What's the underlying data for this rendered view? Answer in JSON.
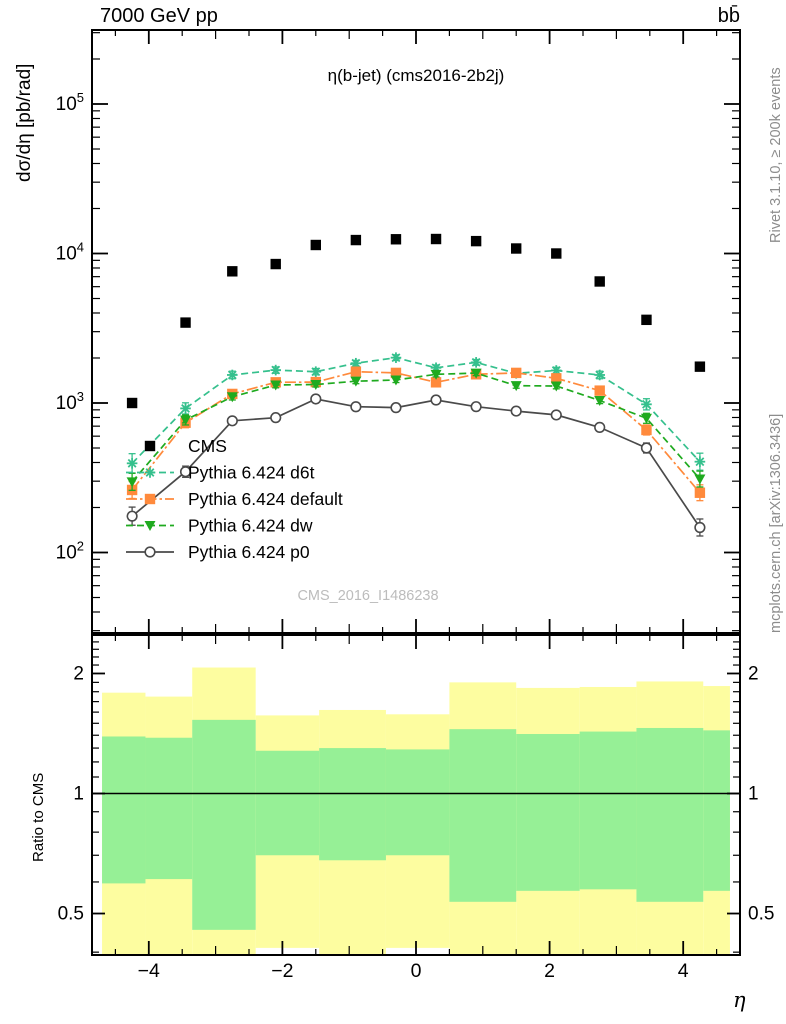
{
  "header": {
    "left_title": "7000 GeV pp",
    "right_title": "bb̄"
  },
  "plot": {
    "title": "η(b-jet) (cms2016-2b2j)",
    "watermark": "CMS_2016_I1486238",
    "ylabel": "dσ/dη [pb/rad]",
    "xlabel": "η",
    "ratio_ylabel": "Ratio to CMS",
    "side_text_top": "Rivet 3.1.10, ≥ 200k events",
    "side_text_bottom": "mcplots.cern.ch [arXiv:1306.3436]"
  },
  "colors": {
    "cms": "#000000",
    "d6t": "#35c08d",
    "default": "#ff8a3c",
    "dw": "#1faa1f",
    "p0": "#4a4a4a",
    "band_yellow": "#fdfda0",
    "band_green": "#96f096",
    "watermark_gray": "#bcbcbc",
    "side_gray": "#8c8c8c"
  },
  "chart_data": {
    "type": "line",
    "title": "η(b-jet) (cms2016-2b2j)",
    "xlabel": "η",
    "ylabel": "dσ/dη [pb/rad]",
    "y_scale": "log",
    "x_range": [
      -4.85,
      4.85
    ],
    "y_range": [
      29,
      310000
    ],
    "x_ticks_major": [
      -4,
      -2,
      0,
      2,
      4
    ],
    "y_tick_decades": [
      2,
      3,
      4,
      5
    ],
    "x": [
      -4.25,
      -3.45,
      -2.75,
      -2.1,
      -1.5,
      -0.9,
      -0.3,
      0.3,
      0.9,
      1.5,
      2.1,
      2.75,
      3.45,
      4.25
    ],
    "series": [
      {
        "name": "CMS",
        "color_ref": "cms",
        "marker": "square-filled",
        "line": "none",
        "values": [
          1000,
          3450,
          7600,
          8500,
          11400,
          12300,
          12450,
          12500,
          12100,
          10800,
          10000,
          6500,
          3600,
          1750
        ],
        "err_frac": [
          0.04,
          0.03,
          0.03,
          0.03,
          0.03,
          0.03,
          0.03,
          0.03,
          0.03,
          0.03,
          0.03,
          0.03,
          0.03,
          0.04
        ]
      },
      {
        "name": "Pythia 6.424 d6t",
        "color_ref": "d6t",
        "marker": "asterisk",
        "line": "dashed",
        "values": [
          395,
          920,
          1540,
          1660,
          1620,
          1845,
          2010,
          1720,
          1870,
          1580,
          1650,
          1540,
          980,
          405
        ],
        "err_frac": [
          0.16,
          0.09,
          0.06,
          0.05,
          0.05,
          0.045,
          0.045,
          0.045,
          0.045,
          0.05,
          0.05,
          0.06,
          0.09,
          0.14
        ]
      },
      {
        "name": "Pythia 6.424 default",
        "color_ref": "default",
        "marker": "square-filled",
        "line": "dashdot",
        "values": [
          262,
          738,
          1150,
          1375,
          1380,
          1620,
          1590,
          1375,
          1556,
          1590,
          1462,
          1210,
          660,
          251
        ],
        "err_frac": [
          0.14,
          0.08,
          0.05,
          0.045,
          0.04,
          0.04,
          0.04,
          0.04,
          0.04,
          0.04,
          0.045,
          0.05,
          0.08,
          0.13
        ]
      },
      {
        "name": "Pythia 6.424 dw",
        "color_ref": "dw",
        "marker": "triangle-down",
        "line": "dashed",
        "values": [
          297,
          770,
          1100,
          1320,
          1330,
          1400,
          1425,
          1555,
          1585,
          1306,
          1300,
          1040,
          790,
          310
        ],
        "err_frac": [
          0.14,
          0.08,
          0.05,
          0.045,
          0.04,
          0.04,
          0.04,
          0.04,
          0.04,
          0.04,
          0.045,
          0.05,
          0.08,
          0.13
        ]
      },
      {
        "name": "Pythia 6.424 p0",
        "color_ref": "p0",
        "marker": "circle-open",
        "line": "solid",
        "values": [
          175,
          347,
          760,
          798,
          1064,
          944,
          931,
          1047,
          945,
          883,
          832,
          687,
          500,
          147
        ],
        "err_frac": [
          0.15,
          0.09,
          0.05,
          0.045,
          0.04,
          0.04,
          0.04,
          0.04,
          0.04,
          0.04,
          0.045,
          0.05,
          0.08,
          0.14
        ]
      }
    ],
    "ratio_panel": {
      "ylabel": "Ratio to CMS",
      "y_scale": "log",
      "y_range": [
        0.394,
        2.495
      ],
      "y_ticks_labeled": [
        0.5,
        1,
        2
      ],
      "reference_line": 1,
      "band_edges": [
        -4.7,
        -4.05,
        -3.35,
        -2.4,
        -1.45,
        -0.45,
        0.5,
        1.5,
        2.45,
        3.3,
        4.3,
        4.7
      ],
      "yellow_lo": [
        0.36,
        0.36,
        0.36,
        0.41,
        0.36,
        0.41,
        0.36,
        0.36,
        0.36,
        0.36,
        0.36
      ],
      "yellow_hi": [
        1.79,
        1.75,
        2.07,
        1.57,
        1.62,
        1.58,
        1.9,
        1.84,
        1.85,
        1.91,
        1.86
      ],
      "green_lo": [
        0.595,
        0.61,
        0.455,
        0.7,
        0.68,
        0.7,
        0.535,
        0.57,
        0.575,
        0.535,
        0.57
      ],
      "green_hi": [
        1.39,
        1.38,
        1.53,
        1.28,
        1.3,
        1.29,
        1.45,
        1.41,
        1.43,
        1.46,
        1.44
      ]
    },
    "legend": [
      {
        "label": "CMS",
        "series_index": 0
      },
      {
        "label": "Pythia 6.424 d6t",
        "series_index": 1
      },
      {
        "label": "Pythia 6.424 default",
        "series_index": 2
      },
      {
        "label": "Pythia 6.424 dw",
        "series_index": 3
      },
      {
        "label": "Pythia 6.424 p0",
        "series_index": 4
      }
    ]
  }
}
